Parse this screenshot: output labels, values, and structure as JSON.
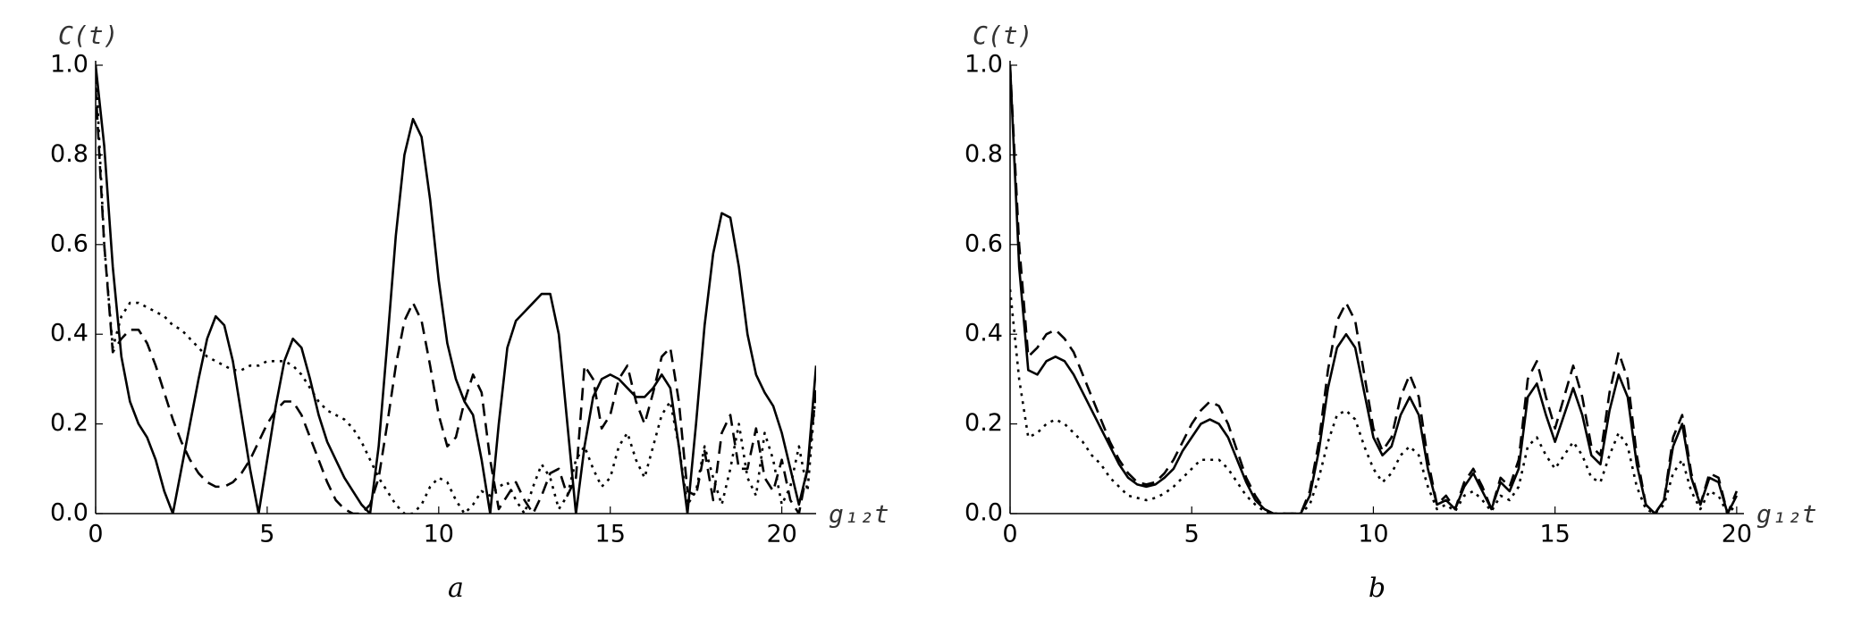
{
  "chart_data": [
    {
      "type": "line",
      "title": "a",
      "x_label": "g₁₂t",
      "y_label": "C(t)",
      "xlim": [
        0,
        21
      ],
      "xticks": [
        0,
        5,
        10,
        15,
        20
      ],
      "ylim": [
        0,
        1
      ],
      "yticks": [
        {
          "value": 0,
          "label": "0.0"
        },
        0.2,
        0.4,
        0.6,
        0.8,
        {
          "value": 1,
          "label": "1.0"
        }
      ],
      "x": [
        0,
        0.25,
        0.5,
        0.75,
        1,
        1.25,
        1.5,
        1.75,
        2,
        2.25,
        2.5,
        2.75,
        3,
        3.25,
        3.5,
        3.75,
        4,
        4.25,
        4.5,
        4.75,
        5,
        5.25,
        5.5,
        5.75,
        6,
        6.25,
        6.5,
        6.75,
        7,
        7.25,
        7.5,
        7.75,
        8,
        8.25,
        8.5,
        8.75,
        9,
        9.25,
        9.5,
        9.75,
        10,
        10.25,
        10.5,
        10.75,
        11,
        11.25,
        11.5,
        11.75,
        12,
        12.25,
        12.5,
        12.75,
        13,
        13.25,
        13.5,
        13.75,
        14,
        14.25,
        14.5,
        14.75,
        15,
        15.25,
        15.5,
        15.75,
        16,
        16.25,
        16.5,
        16.75,
        17,
        17.25,
        17.5,
        17.75,
        18,
        18.25,
        18.5,
        18.75,
        19,
        19.25,
        19.5,
        19.75,
        20,
        20.25,
        20.5,
        20.75,
        21
      ],
      "series": [
        {
          "color": "#000000",
          "dash": "solid",
          "values": [
            1.0,
            0.82,
            0.55,
            0.35,
            0.25,
            0.2,
            0.17,
            0.12,
            0.05,
            0,
            0.1,
            0.2,
            0.3,
            0.39,
            0.44,
            0.42,
            0.34,
            0.22,
            0.1,
            0,
            0.12,
            0.24,
            0.34,
            0.39,
            0.37,
            0.3,
            0.22,
            0.16,
            0.12,
            0.08,
            0.05,
            0.02,
            0,
            0.15,
            0.38,
            0.62,
            0.8,
            0.88,
            0.84,
            0.7,
            0.52,
            0.38,
            0.3,
            0.25,
            0.22,
            0.12,
            0,
            0.2,
            0.37,
            0.43,
            0.45,
            0.47,
            0.49,
            0.49,
            0.4,
            0.2,
            0,
            0.15,
            0.26,
            0.3,
            0.31,
            0.3,
            0.28,
            0.26,
            0.26,
            0.28,
            0.31,
            0.28,
            0.15,
            0,
            0.2,
            0.42,
            0.58,
            0.67,
            0.66,
            0.55,
            0.4,
            0.31,
            0.27,
            0.24,
            0.18,
            0.1,
            0.02,
            0.1,
            0.33
          ]
        },
        {
          "color": "#000000",
          "dash": "dashed",
          "values": [
            0.95,
            0.6,
            0.36,
            0.39,
            0.41,
            0.41,
            0.38,
            0.33,
            0.27,
            0.21,
            0.16,
            0.12,
            0.09,
            0.07,
            0.06,
            0.06,
            0.07,
            0.09,
            0.12,
            0.16,
            0.2,
            0.23,
            0.25,
            0.25,
            0.22,
            0.17,
            0.12,
            0.07,
            0.03,
            0.01,
            0,
            0,
            0.02,
            0.08,
            0.2,
            0.33,
            0.43,
            0.47,
            0.43,
            0.33,
            0.22,
            0.15,
            0.17,
            0.25,
            0.31,
            0.27,
            0.12,
            0.01,
            0.04,
            0.07,
            0.03,
            0,
            0.04,
            0.09,
            0.1,
            0.04,
            0.08,
            0.33,
            0.3,
            0.19,
            0.22,
            0.3,
            0.33,
            0.25,
            0.2,
            0.27,
            0.35,
            0.37,
            0.25,
            0.05,
            0.04,
            0.14,
            0.03,
            0.18,
            0.22,
            0.1,
            0.1,
            0.19,
            0.08,
            0.05,
            0.12,
            0.03,
            0,
            0.1,
            0.27
          ]
        },
        {
          "color": "#000000",
          "dash": "dotted",
          "values": [
            1.0,
            0.6,
            0.37,
            0.44,
            0.47,
            0.47,
            0.46,
            0.45,
            0.44,
            0.42,
            0.41,
            0.39,
            0.37,
            0.35,
            0.34,
            0.33,
            0.32,
            0.32,
            0.33,
            0.33,
            0.34,
            0.34,
            0.34,
            0.33,
            0.31,
            0.28,
            0.25,
            0.23,
            0.22,
            0.21,
            0.19,
            0.16,
            0.12,
            0.08,
            0.05,
            0.02,
            0,
            0,
            0.02,
            0.06,
            0.08,
            0.07,
            0.03,
            0,
            0.02,
            0.05,
            0.04,
            0.06,
            0.07,
            0.03,
            0,
            0.06,
            0.11,
            0.08,
            0.01,
            0.04,
            0.12,
            0.15,
            0.1,
            0.06,
            0.08,
            0.15,
            0.18,
            0.12,
            0.08,
            0.15,
            0.22,
            0.25,
            0.15,
            0.02,
            0.05,
            0.15,
            0.08,
            0.02,
            0.1,
            0.2,
            0.08,
            0.04,
            0.18,
            0.12,
            0.02,
            0.06,
            0.15,
            0.05,
            0.28
          ]
        }
      ]
    },
    {
      "type": "line",
      "title": "b",
      "x_label": "g₁₂t",
      "y_label": "C(t)",
      "xlim": [
        0,
        20.2
      ],
      "xticks": [
        0,
        5,
        10,
        15,
        20
      ],
      "ylim": [
        0,
        1
      ],
      "yticks": [
        {
          "value": 0,
          "label": "0.0"
        },
        0.2,
        0.4,
        0.6,
        0.8,
        {
          "value": 1,
          "label": "1.0"
        }
      ],
      "x": [
        0,
        0.25,
        0.5,
        0.75,
        1,
        1.25,
        1.5,
        1.75,
        2,
        2.25,
        2.5,
        2.75,
        3,
        3.25,
        3.5,
        3.75,
        4,
        4.25,
        4.5,
        4.75,
        5,
        5.25,
        5.5,
        5.75,
        6,
        6.25,
        6.5,
        6.75,
        7,
        7.25,
        7.5,
        7.75,
        8,
        8.25,
        8.5,
        8.75,
        9,
        9.25,
        9.5,
        9.75,
        10,
        10.25,
        10.5,
        10.75,
        11,
        11.25,
        11.5,
        11.75,
        12,
        12.25,
        12.5,
        12.75,
        13,
        13.25,
        13.5,
        13.75,
        14,
        14.25,
        14.5,
        14.75,
        15,
        15.25,
        15.5,
        15.75,
        16,
        16.25,
        16.5,
        16.75,
        17,
        17.25,
        17.5,
        17.75,
        18,
        18.25,
        18.5,
        18.75,
        19,
        19.25,
        19.5,
        19.75,
        20
      ],
      "series": [
        {
          "color": "#000000",
          "dash": "solid",
          "values": [
            1.0,
            0.55,
            0.32,
            0.31,
            0.34,
            0.35,
            0.34,
            0.31,
            0.27,
            0.23,
            0.19,
            0.15,
            0.11,
            0.08,
            0.065,
            0.06,
            0.065,
            0.08,
            0.1,
            0.14,
            0.17,
            0.2,
            0.21,
            0.2,
            0.17,
            0.12,
            0.07,
            0.03,
            0.01,
            0,
            0,
            0,
            0,
            0.04,
            0.14,
            0.28,
            0.37,
            0.4,
            0.37,
            0.27,
            0.17,
            0.13,
            0.15,
            0.22,
            0.26,
            0.22,
            0.1,
            0.02,
            0.03,
            0.01,
            0.06,
            0.09,
            0.05,
            0.01,
            0.07,
            0.05,
            0.1,
            0.26,
            0.29,
            0.22,
            0.16,
            0.22,
            0.28,
            0.22,
            0.13,
            0.11,
            0.23,
            0.31,
            0.26,
            0.11,
            0.02,
            0,
            0.03,
            0.15,
            0.2,
            0.08,
            0.02,
            0.08,
            0.07,
            0,
            0.04
          ]
        },
        {
          "color": "#000000",
          "dash": "dashed",
          "values": [
            1.0,
            0.6,
            0.35,
            0.37,
            0.4,
            0.41,
            0.39,
            0.36,
            0.31,
            0.26,
            0.21,
            0.16,
            0.12,
            0.09,
            0.07,
            0.065,
            0.07,
            0.09,
            0.12,
            0.16,
            0.2,
            0.23,
            0.25,
            0.24,
            0.2,
            0.14,
            0.08,
            0.04,
            0.01,
            0,
            0,
            0,
            0,
            0.05,
            0.16,
            0.32,
            0.43,
            0.47,
            0.43,
            0.31,
            0.19,
            0.14,
            0.17,
            0.26,
            0.31,
            0.26,
            0.12,
            0.02,
            0.04,
            0.01,
            0.07,
            0.1,
            0.06,
            0.01,
            0.08,
            0.06,
            0.12,
            0.3,
            0.34,
            0.26,
            0.19,
            0.26,
            0.33,
            0.26,
            0.15,
            0.13,
            0.27,
            0.36,
            0.3,
            0.13,
            0.02,
            0,
            0.03,
            0.17,
            0.22,
            0.09,
            0.02,
            0.09,
            0.08,
            0,
            0.05
          ]
        },
        {
          "color": "#000000",
          "dash": "dotted",
          "values": [
            0.5,
            0.3,
            0.17,
            0.18,
            0.2,
            0.21,
            0.2,
            0.18,
            0.16,
            0.13,
            0.11,
            0.08,
            0.06,
            0.04,
            0.035,
            0.03,
            0.035,
            0.045,
            0.06,
            0.08,
            0.1,
            0.12,
            0.12,
            0.12,
            0.1,
            0.07,
            0.04,
            0.02,
            0.005,
            0,
            0,
            0,
            0,
            0.02,
            0.08,
            0.16,
            0.22,
            0.23,
            0.21,
            0.15,
            0.1,
            0.07,
            0.09,
            0.13,
            0.15,
            0.13,
            0.06,
            0.01,
            0.02,
            0.005,
            0.04,
            0.05,
            0.03,
            0.005,
            0.04,
            0.03,
            0.06,
            0.15,
            0.17,
            0.13,
            0.1,
            0.13,
            0.16,
            0.13,
            0.08,
            0.07,
            0.13,
            0.18,
            0.15,
            0.06,
            0.01,
            0,
            0.02,
            0.09,
            0.12,
            0.05,
            0.01,
            0.05,
            0.04,
            0,
            0.02
          ]
        }
      ]
    }
  ]
}
